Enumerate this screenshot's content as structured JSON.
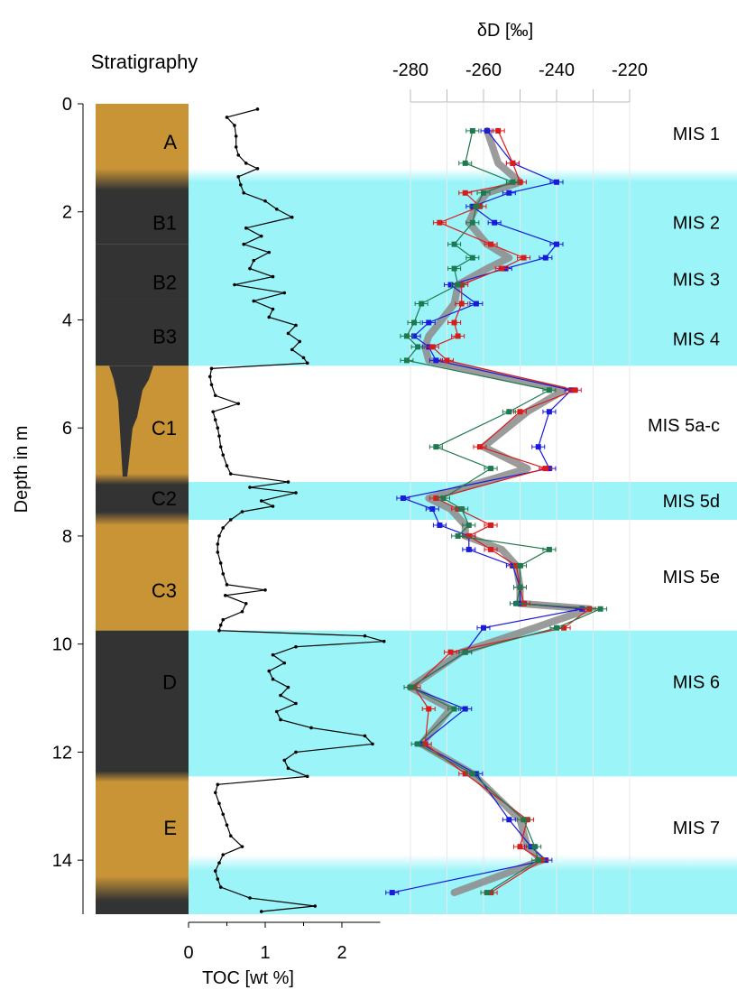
{
  "chart_data": {
    "type": "line",
    "title": "",
    "stratigraphy_label": "Stratigraphy",
    "depth_axis": {
      "label": "Depth in m",
      "ticks": [
        "0",
        "2",
        "4",
        "6",
        "8",
        "10",
        "12",
        "14"
      ],
      "range": [
        0,
        15
      ]
    },
    "dd_axis": {
      "label": "δD [‰]",
      "ticks": [
        "-280",
        "-260",
        "-240",
        "-220"
      ],
      "range": [
        -280,
        -220
      ],
      "minor_step": 10
    },
    "toc_axis": {
      "label": "TOC [wt %]",
      "ticks": [
        "0",
        "1",
        "2"
      ],
      "range": [
        0,
        2.5
      ]
    },
    "units": [
      {
        "label": "A",
        "top": 0,
        "bottom": 1.5,
        "color": "#c89436",
        "text_color": "#000000",
        "label_depth": 0.7
      },
      {
        "label": "B1",
        "top": 1.5,
        "bottom": 2.6,
        "color": "#333333",
        "text_color": "#ffffff",
        "label_depth": 2.2
      },
      {
        "label": "B2",
        "top": 2.6,
        "bottom": 3.6,
        "color": "#333333",
        "text_color": "#ffffff",
        "label_depth": 3.3
      },
      {
        "label": "B3",
        "top": 3.6,
        "bottom": 4.85,
        "color": "#333333",
        "text_color": "#ffffff",
        "label_depth": 4.3
      },
      {
        "label": "C1",
        "top": 4.85,
        "bottom": 7.0,
        "color": "#c89436",
        "text_color": "#000000",
        "label_depth": 6.0
      },
      {
        "label": "C2",
        "top": 7.0,
        "bottom": 7.7,
        "color": "#333333",
        "text_color": "#ffffff",
        "label_depth": 7.3
      },
      {
        "label": "C3",
        "top": 7.7,
        "bottom": 9.75,
        "color": "#c89436",
        "text_color": "#000000",
        "label_depth": 9.0
      },
      {
        "label": "D",
        "top": 9.75,
        "bottom": 12.45,
        "color": "#333333",
        "text_color": "#ffffff",
        "label_depth": 10.7
      },
      {
        "label": "E",
        "top": 12.45,
        "bottom": 15.0,
        "color": "#c89436",
        "text_color": "#000000",
        "label_depth": 13.4
      }
    ],
    "mis_stages": [
      {
        "label": "MIS 1",
        "label_depth": 0.55,
        "shaded": false
      },
      {
        "label": "MIS 2",
        "label_depth": 2.2,
        "shaded": true
      },
      {
        "label": "MIS 3",
        "label_depth": 3.25,
        "shaded": true
      },
      {
        "label": "MIS 4",
        "label_depth": 4.35,
        "shaded": true
      },
      {
        "label": "MIS 5a-c",
        "label_depth": 5.95,
        "shaded": false
      },
      {
        "label": "MIS 5d",
        "label_depth": 7.35,
        "shaded": true
      },
      {
        "label": "MIS 5e",
        "label_depth": 8.75,
        "shaded": false
      },
      {
        "label": "MIS 6",
        "label_depth": 10.7,
        "shaded": true
      },
      {
        "label": "MIS 7",
        "label_depth": 13.4,
        "shaded": false
      }
    ],
    "shaded_intervals": [
      {
        "top": 1.4,
        "bottom": 4.85
      },
      {
        "top": 7.0,
        "bottom": 7.7
      },
      {
        "top": 9.75,
        "bottom": 12.45
      },
      {
        "top": 14.15,
        "bottom": 15.0
      }
    ],
    "shade_color": "#9af4f8",
    "toc_series": {
      "name": "TOC",
      "color": "#000000",
      "depth": [
        0.1,
        0.25,
        0.4,
        0.6,
        0.8,
        0.95,
        1.1,
        1.2,
        1.35,
        1.5,
        1.65,
        1.8,
        1.95,
        2.1,
        2.3,
        2.45,
        2.6,
        2.75,
        2.9,
        3.05,
        3.2,
        3.35,
        3.5,
        3.65,
        3.8,
        3.95,
        4.1,
        4.25,
        4.4,
        4.55,
        4.7,
        4.8,
        4.9,
        5.05,
        5.2,
        5.4,
        5.55,
        5.7,
        5.85,
        6.0,
        6.15,
        6.35,
        6.5,
        6.7,
        6.85,
        7.0,
        7.1,
        7.2,
        7.35,
        7.45,
        7.55,
        7.7,
        7.85,
        8.0,
        8.15,
        8.3,
        8.5,
        8.7,
        8.9,
        9.0,
        9.1,
        9.25,
        9.4,
        9.55,
        9.65,
        9.75,
        9.85,
        9.95,
        10.05,
        10.2,
        10.35,
        10.5,
        10.65,
        10.8,
        10.95,
        11.1,
        11.25,
        11.4,
        11.55,
        11.7,
        11.85,
        12.0,
        12.15,
        12.3,
        12.45,
        12.6,
        12.75,
        12.95,
        13.15,
        13.35,
        13.55,
        13.75,
        13.9,
        14.05,
        14.2,
        14.35,
        14.5,
        14.7,
        14.85,
        14.95
      ],
      "values": [
        0.9,
        0.5,
        0.6,
        0.62,
        0.62,
        0.65,
        0.75,
        0.9,
        0.65,
        0.68,
        0.72,
        1.0,
        1.15,
        1.35,
        0.75,
        0.95,
        0.72,
        1.05,
        0.85,
        0.8,
        1.1,
        0.6,
        1.25,
        0.85,
        1.1,
        1.05,
        1.4,
        1.3,
        1.45,
        1.35,
        1.5,
        1.55,
        0.3,
        0.28,
        0.3,
        0.35,
        0.65,
        0.32,
        0.35,
        0.38,
        0.4,
        0.42,
        0.45,
        0.5,
        0.55,
        1.3,
        0.8,
        1.4,
        0.95,
        1.1,
        0.7,
        0.55,
        0.45,
        0.4,
        0.38,
        0.38,
        0.42,
        0.45,
        0.5,
        1.0,
        0.48,
        0.75,
        0.7,
        0.45,
        0.42,
        0.4,
        2.3,
        2.55,
        1.4,
        1.1,
        1.25,
        1.05,
        1.1,
        1.3,
        1.2,
        1.4,
        1.15,
        1.2,
        1.6,
        2.3,
        2.4,
        1.4,
        1.25,
        1.3,
        1.55,
        0.38,
        0.35,
        0.4,
        0.45,
        0.5,
        0.55,
        0.7,
        0.45,
        0.4,
        0.35,
        0.38,
        0.42,
        0.8,
        1.65,
        0.95
      ]
    },
    "dd_depths": [
      0.5,
      1.1,
      1.45,
      1.65,
      1.9,
      2.2,
      2.6,
      2.85,
      3.05,
      3.35,
      3.7,
      4.05,
      4.3,
      4.5,
      4.75,
      5.3,
      5.7,
      6.35,
      6.75,
      7.3,
      7.5,
      7.8,
      8.0,
      8.25,
      8.55,
      8.95,
      9.25,
      9.35,
      9.7,
      10.15,
      10.8,
      11.2,
      11.85,
      12.4,
      13.25,
      13.75,
      14.0,
      14.6
    ],
    "dd_series": [
      {
        "name": "",
        "color": "#1a1adc",
        "errorbars": true,
        "values": [
          -259,
          -252,
          -240,
          -253,
          -263,
          -257,
          -240,
          -243,
          -254,
          -269,
          -262,
          -275,
          -279,
          -275,
          -273,
          -236,
          -242,
          -245,
          -242,
          -282,
          -274,
          -272,
          -264,
          -264,
          -252,
          -250,
          -250,
          -233,
          -260,
          -265,
          -280,
          -265,
          -277,
          -262,
          -253,
          -247,
          -243,
          -285
        ]
      },
      {
        "name": "",
        "color": "#dd1a1a",
        "errorbars": true,
        "values": [
          -256,
          -252,
          -250,
          -265,
          -261,
          -272,
          -258,
          -249,
          -255,
          -266,
          -266,
          -268,
          -267,
          -274,
          -270,
          -235,
          -250,
          -261,
          -243,
          -273,
          -267,
          -258,
          -264,
          -258,
          -251,
          -250,
          -249,
          -231,
          -238,
          -269,
          -279,
          -275,
          -276,
          -265,
          -248,
          -250,
          -244,
          -258
        ]
      },
      {
        "name": "",
        "color": "#1e7a4e",
        "errorbars": true,
        "values": [
          -263,
          -265,
          -252,
          -260,
          -262,
          -263,
          -268,
          -263,
          -268,
          -267,
          -277,
          -279,
          -281,
          -278,
          -281,
          -242,
          -253,
          -273,
          -258,
          -271,
          -266,
          -264,
          -267,
          -242,
          -250,
          -250,
          -251,
          -228,
          -240,
          -265,
          -280,
          -268,
          -278,
          -263,
          -249,
          -246,
          -245,
          -259
        ]
      },
      {
        "name": "",
        "color": "#909090",
        "errorbars": false,
        "values": [
          -259,
          -256,
          -250,
          -259,
          -262,
          -264,
          -259,
          -253,
          -259,
          -267,
          -268,
          -272,
          -275,
          -276,
          -275,
          -238,
          -248,
          -260,
          -248,
          -275,
          -269,
          -265,
          -265,
          -255,
          -251,
          -250,
          -250,
          -231,
          -246,
          -266,
          -280,
          -269,
          -277,
          -263,
          -250,
          -248,
          -244,
          -268
        ]
      }
    ]
  }
}
